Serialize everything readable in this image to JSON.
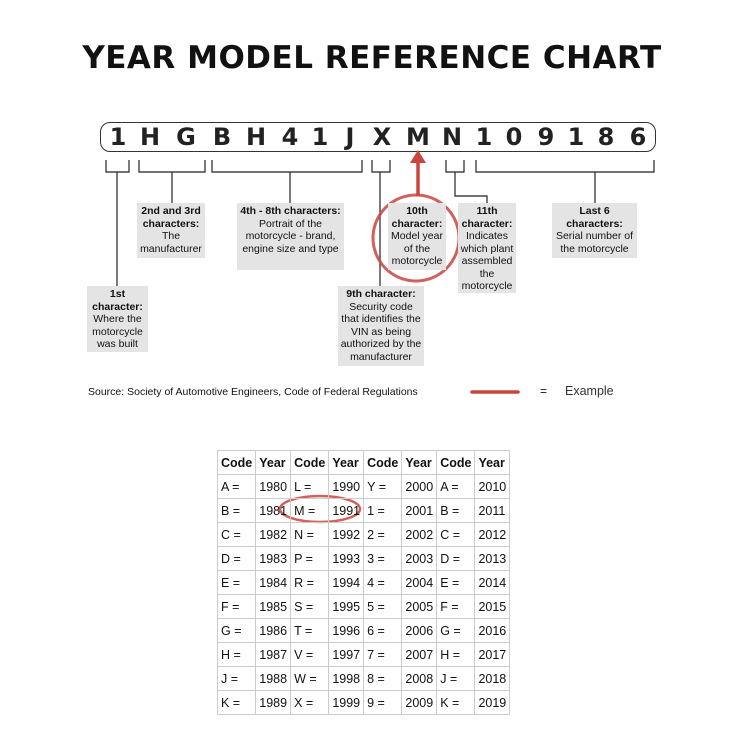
{
  "title": "YEAR MODEL REFERENCE CHART",
  "vin": [
    "1",
    "H",
    "G",
    "B",
    "H",
    "4",
    "1",
    "J",
    "X",
    "M",
    "N",
    "1",
    "0",
    "9",
    "1",
    "8",
    "6"
  ],
  "boxes": {
    "first": {
      "head": "1st character:",
      "body": "Where the motorcycle was built"
    },
    "second": {
      "head": "2nd and 3rd characters:",
      "body": "The manufacturer"
    },
    "fourth": {
      "head": "4th - 8th characters:",
      "body": "Portrait of the motorcycle - brand, engine size and type"
    },
    "ninth": {
      "head": "9th character:",
      "body": "Security code that identifies the VIN as being authorized by the manufacturer"
    },
    "tenth": {
      "head": "10th character:",
      "body": "Model year of the motorcycle"
    },
    "eleventh": {
      "head": "11th character:",
      "body": "Indicates which plant assembled the motorcycle"
    },
    "last": {
      "head": "Last 6 characters:",
      "body": "Serial number of the motorcycle"
    }
  },
  "source": "Source:  Society of Automotive Engineers, Code of Federal Regulations",
  "legend": {
    "equals": "=",
    "label": "Example"
  },
  "highlight_color": "#c9453d",
  "table": {
    "headers": [
      "Code",
      "Year",
      "Code",
      "Year",
      "Code",
      "Year",
      "Code",
      "Year"
    ],
    "rows": [
      [
        "A =",
        "1980",
        "L =",
        "1990",
        "Y =",
        "2000",
        "A =",
        "2010"
      ],
      [
        "B =",
        "1981",
        "M =",
        "1991",
        "1 =",
        "2001",
        "B =",
        "2011"
      ],
      [
        "C =",
        "1982",
        "N =",
        "1992",
        "2 =",
        "2002",
        "C =",
        "2012"
      ],
      [
        "D =",
        "1983",
        "P =",
        "1993",
        "3 =",
        "2003",
        "D =",
        "2013"
      ],
      [
        "E =",
        "1984",
        "R =",
        "1994",
        "4 =",
        "2004",
        "E =",
        "2014"
      ],
      [
        "F =",
        "1985",
        "S =",
        "1995",
        "5 =",
        "2005",
        "F =",
        "2015"
      ],
      [
        "G =",
        "1986",
        "T =",
        "1996",
        "6 =",
        "2006",
        "G =",
        "2016"
      ],
      [
        "H =",
        "1987",
        "V =",
        "1997",
        "7 =",
        "2007",
        "H =",
        "2017"
      ],
      [
        "J =",
        "1988",
        "W =",
        "1998",
        "8 =",
        "2008",
        "J =",
        "2018"
      ],
      [
        "K =",
        "1989",
        "X =",
        "1999",
        "9 =",
        "2009",
        "K =",
        "2019"
      ]
    ]
  }
}
